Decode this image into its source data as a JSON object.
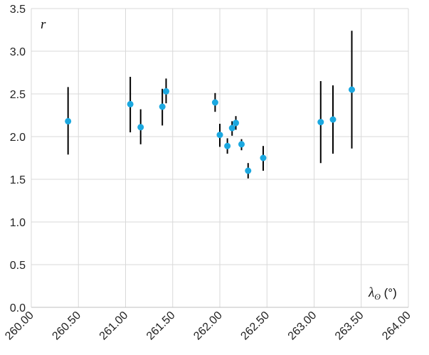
{
  "chart_data": {
    "type": "scatter",
    "ylabel": "r",
    "xlabel_symbol": "λ",
    "xlabel_subscript": "ʘ",
    "xlabel_unit": " (°)",
    "xlim": [
      260.0,
      264.0
    ],
    "ylim": [
      0.0,
      3.5
    ],
    "x_ticks": [
      "260.00",
      "260.50",
      "261.00",
      "261.50",
      "262.00",
      "262.50",
      "263.00",
      "263.50",
      "264.00"
    ],
    "y_ticks": [
      "0.0",
      "0.5",
      "1.0",
      "1.5",
      "2.0",
      "2.5",
      "3.0",
      "3.5"
    ],
    "grid": true,
    "marker_color": "#1ba8e0",
    "errorbar_color": "#000000",
    "points": [
      {
        "x": 260.39,
        "y": 2.18,
        "ylo": 1.79,
        "yhi": 2.58
      },
      {
        "x": 261.05,
        "y": 2.38,
        "ylo": 2.05,
        "yhi": 2.7
      },
      {
        "x": 261.16,
        "y": 2.11,
        "ylo": 1.91,
        "yhi": 2.32
      },
      {
        "x": 261.39,
        "y": 2.35,
        "ylo": 2.13,
        "yhi": 2.56
      },
      {
        "x": 261.43,
        "y": 2.53,
        "ylo": 2.39,
        "yhi": 2.68
      },
      {
        "x": 261.95,
        "y": 2.4,
        "ylo": 2.29,
        "yhi": 2.51
      },
      {
        "x": 262.0,
        "y": 2.02,
        "ylo": 1.88,
        "yhi": 2.15
      },
      {
        "x": 262.08,
        "y": 1.89,
        "ylo": 1.8,
        "yhi": 1.98
      },
      {
        "x": 262.13,
        "y": 2.1,
        "ylo": 2.01,
        "yhi": 2.18
      },
      {
        "x": 262.17,
        "y": 2.16,
        "ylo": 2.08,
        "yhi": 2.24
      },
      {
        "x": 262.23,
        "y": 1.91,
        "ylo": 1.84,
        "yhi": 1.97
      },
      {
        "x": 262.3,
        "y": 1.6,
        "ylo": 1.51,
        "yhi": 1.69
      },
      {
        "x": 262.46,
        "y": 1.75,
        "ylo": 1.6,
        "yhi": 1.89
      },
      {
        "x": 263.07,
        "y": 2.17,
        "ylo": 1.69,
        "yhi": 2.65
      },
      {
        "x": 263.2,
        "y": 2.2,
        "ylo": 1.8,
        "yhi": 2.6
      },
      {
        "x": 263.4,
        "y": 2.55,
        "ylo": 1.86,
        "yhi": 3.24
      }
    ]
  }
}
